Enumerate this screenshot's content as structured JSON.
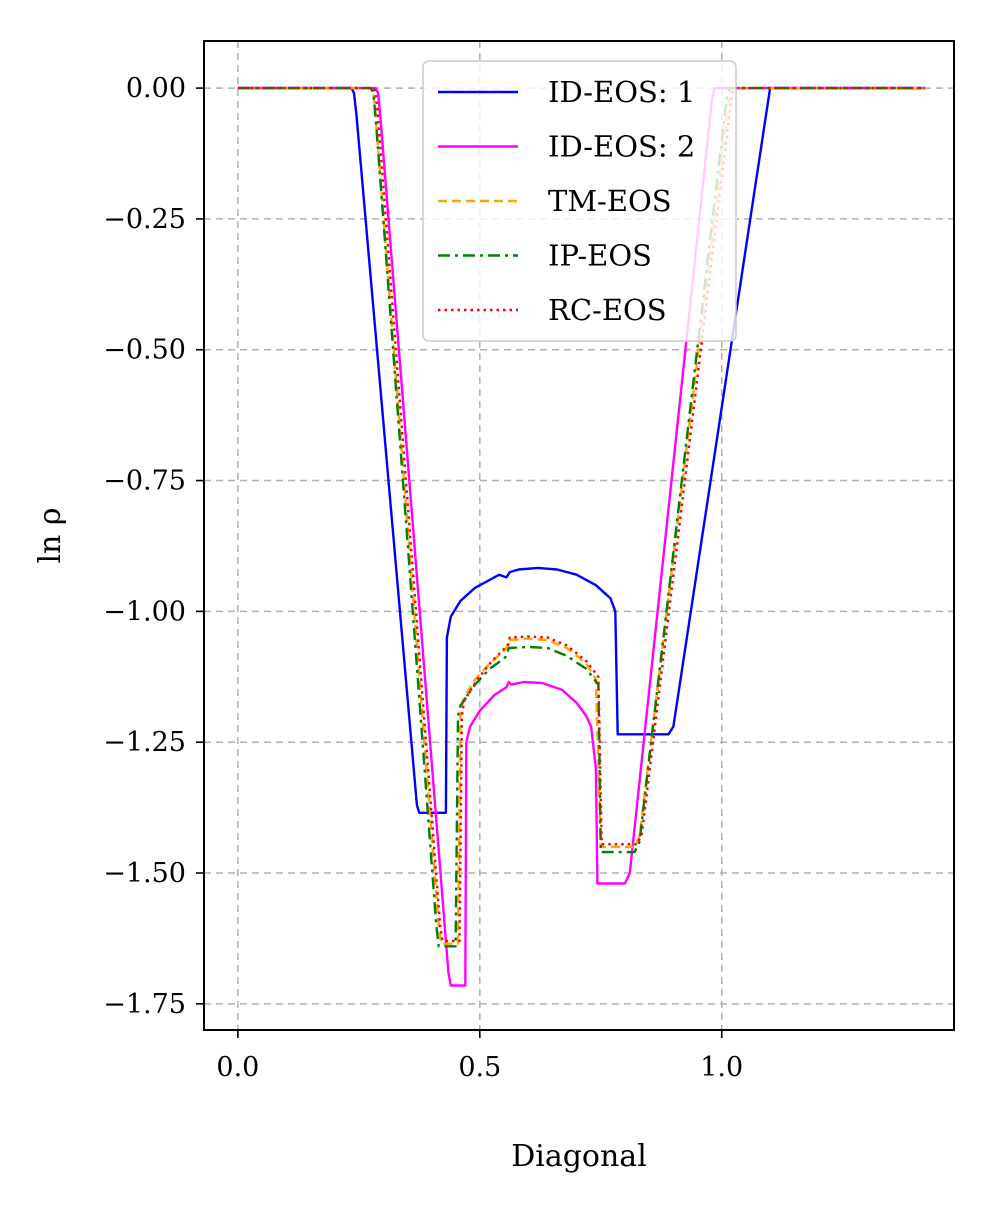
{
  "chart_data": {
    "type": "line",
    "xlabel": "Diagonal",
    "ylabel": "ln ρ",
    "xlim": [
      -0.07,
      1.48
    ],
    "ylim": [
      -1.8,
      0.09
    ],
    "xticks": [
      0.0,
      0.5,
      1.0
    ],
    "xtick_labels": [
      "0.0",
      "0.5",
      "1.0"
    ],
    "yticks": [
      0.0,
      -0.25,
      -0.5,
      -0.75,
      -1.0,
      -1.25,
      -1.5,
      -1.75
    ],
    "ytick_labels": [
      "0.00",
      "−0.25",
      "−0.50",
      "−0.75",
      "−1.00",
      "−1.25",
      "−1.50",
      "−1.75"
    ],
    "grid": true,
    "legend_position": "top-center",
    "series": [
      {
        "name": "ID-EOS: 1",
        "color": "#0000ff",
        "dash": "solid",
        "points": [
          [
            0.0,
            0.0
          ],
          [
            0.235,
            0.0
          ],
          [
            0.24,
            -0.01
          ],
          [
            0.245,
            -0.05
          ],
          [
            0.37,
            -1.37
          ],
          [
            0.375,
            -1.385
          ],
          [
            0.43,
            -1.385
          ],
          [
            0.432,
            -1.05
          ],
          [
            0.44,
            -1.01
          ],
          [
            0.46,
            -0.98
          ],
          [
            0.49,
            -0.955
          ],
          [
            0.52,
            -0.94
          ],
          [
            0.54,
            -0.93
          ],
          [
            0.555,
            -0.935
          ],
          [
            0.562,
            -0.925
          ],
          [
            0.58,
            -0.92
          ],
          [
            0.62,
            -0.917
          ],
          [
            0.66,
            -0.92
          ],
          [
            0.7,
            -0.93
          ],
          [
            0.74,
            -0.95
          ],
          [
            0.77,
            -0.975
          ],
          [
            0.78,
            -1.0
          ],
          [
            0.785,
            -1.235
          ],
          [
            0.89,
            -1.235
          ],
          [
            0.9,
            -1.22
          ],
          [
            1.1,
            0.0
          ],
          [
            1.42,
            0.0
          ]
        ]
      },
      {
        "name": "ID-EOS: 2",
        "color": "#ff00ff",
        "dash": "solid",
        "points": [
          [
            0.0,
            0.0
          ],
          [
            0.285,
            0.0
          ],
          [
            0.29,
            -0.01
          ],
          [
            0.295,
            -0.06
          ],
          [
            0.435,
            -1.69
          ],
          [
            0.44,
            -1.715
          ],
          [
            0.47,
            -1.715
          ],
          [
            0.472,
            -1.25
          ],
          [
            0.48,
            -1.22
          ],
          [
            0.5,
            -1.19
          ],
          [
            0.53,
            -1.16
          ],
          [
            0.555,
            -1.145
          ],
          [
            0.56,
            -1.135
          ],
          [
            0.565,
            -1.14
          ],
          [
            0.59,
            -1.135
          ],
          [
            0.63,
            -1.137
          ],
          [
            0.67,
            -1.15
          ],
          [
            0.7,
            -1.175
          ],
          [
            0.72,
            -1.2
          ],
          [
            0.73,
            -1.22
          ],
          [
            0.74,
            -1.3
          ],
          [
            0.743,
            -1.52
          ],
          [
            0.8,
            -1.52
          ],
          [
            0.81,
            -1.5
          ],
          [
            0.98,
            -0.02
          ],
          [
            0.985,
            0.0
          ],
          [
            1.42,
            0.0
          ]
        ]
      },
      {
        "name": "TM-EOS",
        "color": "#ffa500",
        "dash": "9 5",
        "points": [
          [
            0.0,
            0.0
          ],
          [
            0.275,
            0.0
          ],
          [
            0.28,
            -0.01
          ],
          [
            0.285,
            -0.06
          ],
          [
            0.415,
            -1.6
          ],
          [
            0.42,
            -1.635
          ],
          [
            0.455,
            -1.635
          ],
          [
            0.46,
            -1.2
          ],
          [
            0.465,
            -1.17
          ],
          [
            0.49,
            -1.13
          ],
          [
            0.52,
            -1.1
          ],
          [
            0.55,
            -1.075
          ],
          [
            0.555,
            -1.07
          ],
          [
            0.56,
            -1.055
          ],
          [
            0.6,
            -1.052
          ],
          [
            0.64,
            -1.055
          ],
          [
            0.68,
            -1.07
          ],
          [
            0.72,
            -1.1
          ],
          [
            0.74,
            -1.13
          ],
          [
            0.75,
            -1.45
          ],
          [
            0.82,
            -1.45
          ],
          [
            0.83,
            -1.43
          ],
          [
            1.015,
            -0.02
          ],
          [
            1.02,
            0.0
          ],
          [
            1.42,
            0.0
          ]
        ]
      },
      {
        "name": "IP-EOS",
        "color": "#008000",
        "dash": "12 5 3 5",
        "points": [
          [
            0.0,
            0.0
          ],
          [
            0.275,
            0.0
          ],
          [
            0.28,
            -0.01
          ],
          [
            0.285,
            -0.06
          ],
          [
            0.41,
            -1.6
          ],
          [
            0.415,
            -1.64
          ],
          [
            0.45,
            -1.64
          ],
          [
            0.455,
            -1.2
          ],
          [
            0.46,
            -1.18
          ],
          [
            0.49,
            -1.14
          ],
          [
            0.52,
            -1.11
          ],
          [
            0.55,
            -1.09
          ],
          [
            0.555,
            -1.085
          ],
          [
            0.56,
            -1.07
          ],
          [
            0.6,
            -1.068
          ],
          [
            0.64,
            -1.07
          ],
          [
            0.68,
            -1.085
          ],
          [
            0.72,
            -1.11
          ],
          [
            0.745,
            -1.14
          ],
          [
            0.75,
            -1.46
          ],
          [
            0.82,
            -1.46
          ],
          [
            0.83,
            -1.44
          ],
          [
            1.01,
            -0.02
          ],
          [
            1.015,
            0.0
          ],
          [
            1.42,
            0.0
          ]
        ]
      },
      {
        "name": "RC-EOS",
        "color": "#ff0000",
        "dash": "2.5 4",
        "points": [
          [
            0.0,
            0.0
          ],
          [
            0.28,
            0.0
          ],
          [
            0.285,
            -0.01
          ],
          [
            0.29,
            -0.06
          ],
          [
            0.418,
            -1.6
          ],
          [
            0.423,
            -1.63
          ],
          [
            0.458,
            -1.63
          ],
          [
            0.463,
            -1.2
          ],
          [
            0.468,
            -1.17
          ],
          [
            0.495,
            -1.13
          ],
          [
            0.525,
            -1.095
          ],
          [
            0.552,
            -1.07
          ],
          [
            0.558,
            -1.065
          ],
          [
            0.562,
            -1.05
          ],
          [
            0.6,
            -1.048
          ],
          [
            0.64,
            -1.05
          ],
          [
            0.68,
            -1.065
          ],
          [
            0.72,
            -1.095
          ],
          [
            0.745,
            -1.125
          ],
          [
            0.752,
            -1.445
          ],
          [
            0.825,
            -1.445
          ],
          [
            0.835,
            -1.425
          ],
          [
            1.02,
            -0.02
          ],
          [
            1.025,
            0.0
          ],
          [
            1.42,
            0.0
          ]
        ]
      }
    ]
  }
}
